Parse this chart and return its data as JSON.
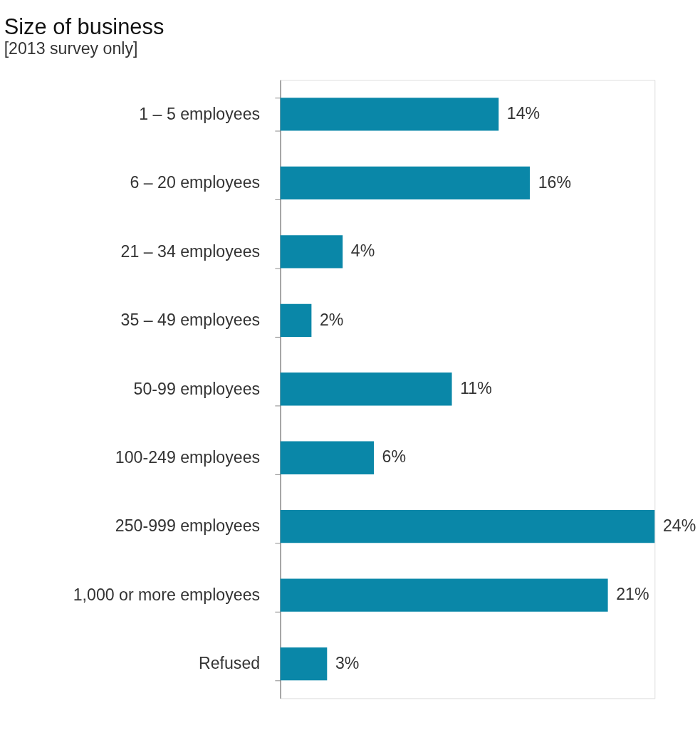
{
  "chart_data": {
    "type": "bar",
    "orientation": "horizontal",
    "title": "Size of business",
    "subtitle": "[2013 survey only]",
    "categories": [
      "1 – 5 employees",
      "6 – 20 employees",
      "21 – 34 employees",
      "35 – 49 employees",
      "50-99 employees",
      "100-249 employees",
      "250-999 employees",
      "1,000 or more employees",
      "Refused"
    ],
    "values": [
      14,
      16,
      4,
      2,
      11,
      6,
      24,
      21,
      3
    ],
    "value_labels": [
      "14%",
      "16%",
      "4%",
      "2%",
      "11%",
      "6%",
      "24%",
      "21%",
      "3%"
    ],
    "color": "#0a87a8",
    "tick_labels": "y"
  }
}
